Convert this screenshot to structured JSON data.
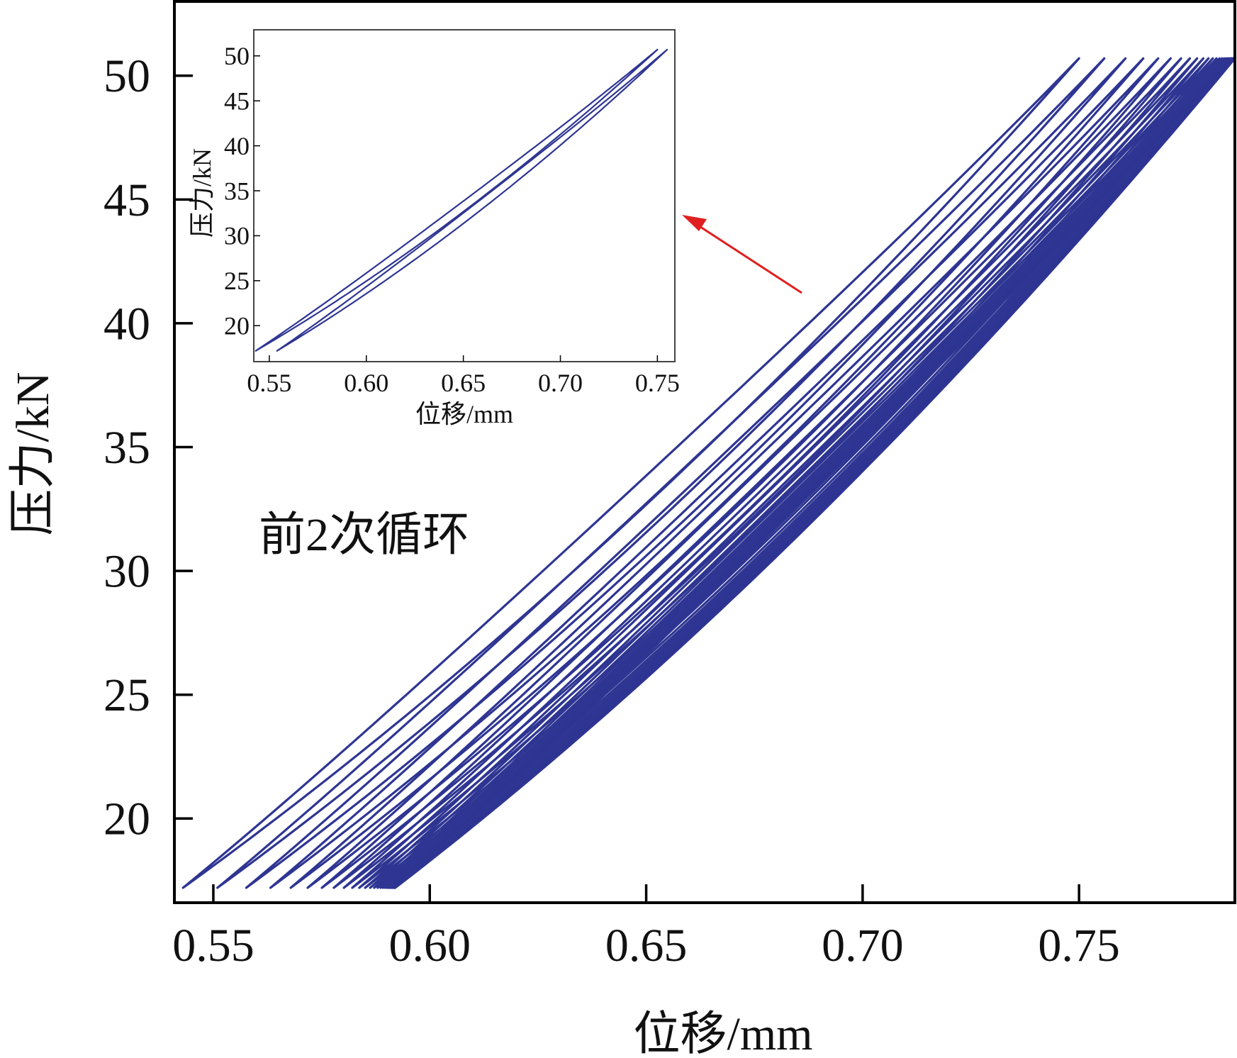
{
  "chart_data": [
    {
      "id": "main",
      "type": "line",
      "title": "",
      "xlabel": "位移/mm",
      "ylabel": "压力/kN",
      "xlim": [
        0.541,
        0.786
      ],
      "ylim": [
        16.6,
        53.0
      ],
      "xticks": [
        "0.55",
        "0.60",
        "0.65",
        "0.70",
        "0.75"
      ],
      "xtick_values": [
        0.55,
        0.6,
        0.65,
        0.7,
        0.75
      ],
      "yticks": [
        "20",
        "25",
        "30",
        "35",
        "40",
        "45",
        "50"
      ],
      "ytick_values": [
        20,
        25,
        30,
        35,
        40,
        45,
        50
      ],
      "grid": false,
      "legend": "none",
      "annotation": "前2次循环",
      "series": [
        {
          "color": "#2e3592",
          "cycles": 35,
          "first_cycle_x_range": [
            0.543,
            0.75
          ],
          "last_cycle_x_range": [
            0.592,
            0.786
          ],
          "y_range": [
            17.2,
            50.7
          ],
          "cycle_shift_decay": 6.0
        }
      ]
    },
    {
      "id": "inset",
      "type": "line",
      "title": "",
      "xlabel": "位移/mm",
      "ylabel": "压力/kN",
      "xlim": [
        0.542,
        0.759
      ],
      "ylim": [
        16.0,
        52.9
      ],
      "xticks": [
        "0.55",
        "0.60",
        "0.65",
        "0.70",
        "0.75"
      ],
      "xtick_values": [
        0.55,
        0.6,
        0.65,
        0.7,
        0.75
      ],
      "yticks": [
        "20",
        "25",
        "30",
        "35",
        "40",
        "45",
        "50"
      ],
      "ytick_values": [
        20,
        25,
        30,
        35,
        40,
        45,
        50
      ],
      "grid": false,
      "legend": "none",
      "series": [
        {
          "color": "#2e3592",
          "cycles": 2,
          "first_cycle_x_range": [
            0.543,
            0.75
          ],
          "last_cycle_x_range": [
            0.554,
            0.755
          ],
          "y_range": [
            17.2,
            50.7
          ],
          "cycle_shift_decay": 1.0
        }
      ]
    }
  ],
  "arrow_color": "#e02020"
}
